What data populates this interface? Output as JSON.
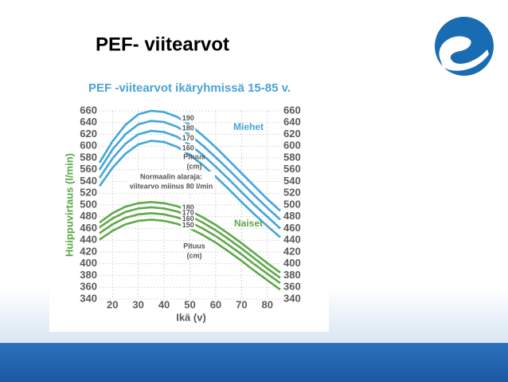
{
  "slide": {
    "title": "PEF- viitearvot"
  },
  "chart_data": {
    "type": "line",
    "title": "PEF -viitearvot ikäryhmissä 15-85 v.",
    "x_label": "Ikä (v)",
    "y_label": "Huippuvirtaus (l/min)",
    "x": [
      15,
      20,
      25,
      30,
      35,
      40,
      45,
      50,
      55,
      60,
      65,
      70,
      75,
      80,
      85
    ],
    "xlim": [
      15,
      85
    ],
    "xticks": [
      20,
      30,
      40,
      50,
      60,
      70,
      80
    ],
    "ylim": [
      340,
      660
    ],
    "yticks": [
      340,
      360,
      380,
      400,
      420,
      440,
      460,
      480,
      500,
      520,
      540,
      560,
      580,
      600,
      620,
      640,
      660
    ],
    "grid": true,
    "series": [
      {
        "name": "190",
        "color": "#43a6d8",
        "values": [
          572,
          608,
          636,
          654,
          660,
          658,
          650,
          636,
          618,
          598,
          576,
          554,
          532,
          510,
          490
        ]
      },
      {
        "name": "180",
        "color": "#43a6d8",
        "values": [
          560,
          594,
          620,
          637,
          643,
          641,
          633,
          619,
          601,
          581,
          560,
          538,
          516,
          495,
          475
        ]
      },
      {
        "name": "170",
        "color": "#43a6d8",
        "values": [
          546,
          579,
          604,
          620,
          626,
          624,
          616,
          602,
          585,
          565,
          544,
          522,
          500,
          480,
          460
        ]
      },
      {
        "name": "160",
        "color": "#43a6d8",
        "values": [
          532,
          563,
          587,
          603,
          609,
          607,
          599,
          585,
          568,
          548,
          527,
          505,
          484,
          464,
          445
        ]
      },
      {
        "name": "180",
        "color": "#5fa84a",
        "values": [
          470,
          486,
          497,
          503,
          505,
          503,
          498,
          490,
          479,
          466,
          451,
          435,
          418,
          401,
          385
        ]
      },
      {
        "name": "170",
        "color": "#5fa84a",
        "values": [
          462,
          477,
          488,
          494,
          496,
          494,
          489,
          481,
          470,
          457,
          442,
          426,
          409,
          392,
          376
        ]
      },
      {
        "name": "160",
        "color": "#5fa84a",
        "values": [
          452,
          467,
          478,
          484,
          486,
          484,
          479,
          471,
          460,
          447,
          432,
          416,
          399,
          383,
          367
        ]
      },
      {
        "name": "150",
        "color": "#5fa84a",
        "values": [
          441,
          456,
          467,
          473,
          475,
          473,
          468,
          460,
          449,
          436,
          421,
          405,
          388,
          372,
          356
        ]
      }
    ],
    "annotations": [
      "Miehet",
      "Naiset",
      "Normaalin alaraja:",
      "viitearvo miinus 80 l/min",
      "Pituus",
      "(cm)",
      "Pituus",
      "(cm)"
    ]
  }
}
